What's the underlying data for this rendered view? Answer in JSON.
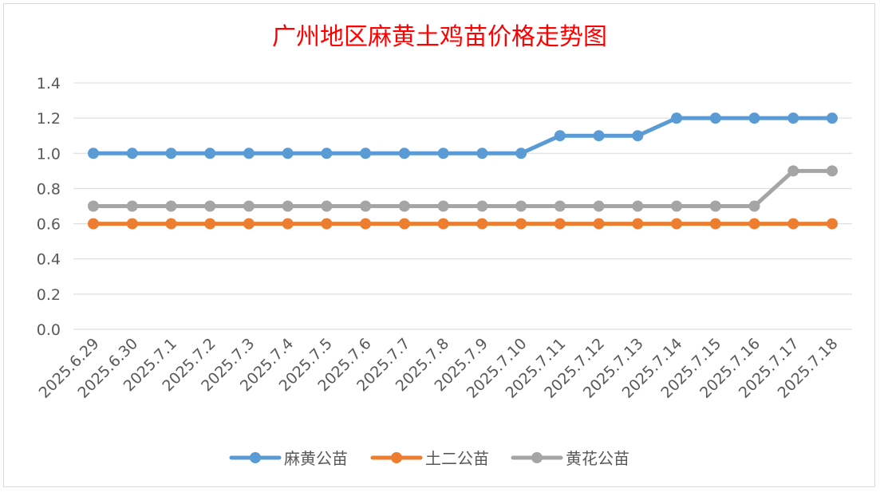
{
  "chart_data": {
    "type": "line",
    "title": "广州地区麻黄土鸡苗价格走势图",
    "xlabel": "",
    "ylabel": "",
    "ylim": [
      0,
      1.4
    ],
    "yticks": [
      "0.0",
      "0.2",
      "0.4",
      "0.6",
      "0.8",
      "1.0",
      "1.2",
      "1.4"
    ],
    "grid": true,
    "legend_position": "bottom",
    "categories": [
      "2025.6.29",
      "2025.6.30",
      "2025.7.1",
      "2025.7.2",
      "2025.7.3",
      "2025.7.4",
      "2025.7.5",
      "2025.7.6",
      "2025.7.7",
      "2025.7.8",
      "2025.7.9",
      "2025.7.10",
      "2025.7.11",
      "2025.7.12",
      "2025.7.13",
      "2025.7.14",
      "2025.7.15",
      "2025.7.16",
      "2025.7.17",
      "2025.7.18"
    ],
    "series": [
      {
        "name": "麻黄公苗",
        "color": "#5b9bd5",
        "values": [
          1.0,
          1.0,
          1.0,
          1.0,
          1.0,
          1.0,
          1.0,
          1.0,
          1.0,
          1.0,
          1.0,
          1.0,
          1.1,
          1.1,
          1.1,
          1.2,
          1.2,
          1.2,
          1.2,
          1.2
        ]
      },
      {
        "name": "土二公苗",
        "color": "#ed7d31",
        "values": [
          0.6,
          0.6,
          0.6,
          0.6,
          0.6,
          0.6,
          0.6,
          0.6,
          0.6,
          0.6,
          0.6,
          0.6,
          0.6,
          0.6,
          0.6,
          0.6,
          0.6,
          0.6,
          0.6,
          0.6
        ]
      },
      {
        "name": "黄花公苗",
        "color": "#a5a5a5",
        "values": [
          0.7,
          0.7,
          0.7,
          0.7,
          0.7,
          0.7,
          0.7,
          0.7,
          0.7,
          0.7,
          0.7,
          0.7,
          0.7,
          0.7,
          0.7,
          0.7,
          0.7,
          0.7,
          0.9,
          0.9
        ]
      }
    ]
  }
}
